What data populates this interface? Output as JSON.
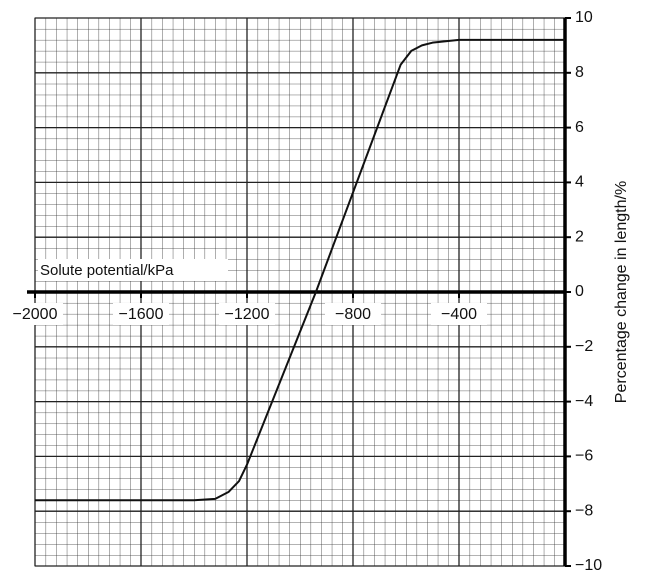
{
  "chart_data": {
    "type": "line",
    "x_label": "Solute potential/kPa",
    "y_label": "Percentage change in length/%",
    "xlim": [
      -2000,
      0
    ],
    "ylim": [
      -10,
      10
    ],
    "xticks": [
      {
        "value": -2000,
        "label": "−2000"
      },
      {
        "value": -1600,
        "label": "−1600"
      },
      {
        "value": -1200,
        "label": "−1200"
      },
      {
        "value": -800,
        "label": "−800"
      },
      {
        "value": -400,
        "label": "−400"
      }
    ],
    "yticks": [
      10,
      8,
      6,
      4,
      2,
      0,
      {
        "value": -2,
        "label": "−2"
      },
      {
        "value": -4,
        "label": "−4"
      },
      {
        "value": -6,
        "label": "−6"
      },
      {
        "value": -8,
        "label": "−8"
      },
      {
        "value": -10,
        "label": "−10"
      }
    ],
    "grid": true,
    "series": [
      {
        "color": "#111111",
        "x": [
          -2000,
          -1400,
          -1320,
          -1270,
          -1230,
          -1200,
          -940,
          -620,
          -580,
          -540,
          -500,
          -400,
          0
        ],
        "values": [
          -7.6,
          -7.6,
          -7.55,
          -7.3,
          -6.9,
          -6.3,
          0,
          8.3,
          8.8,
          9.0,
          9.1,
          9.2,
          9.2
        ]
      }
    ]
  }
}
